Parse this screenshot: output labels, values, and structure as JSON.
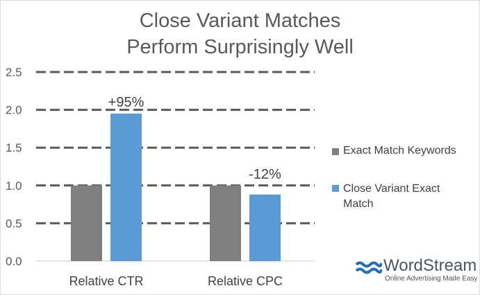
{
  "chart_data": {
    "type": "bar",
    "title": [
      "Close Variant Matches",
      "Perform Surprisingly Well"
    ],
    "categories": [
      "Relative CTR",
      "Relative CPC"
    ],
    "series": [
      {
        "name": "Exact Match Keywords",
        "values": [
          1.0,
          1.0
        ],
        "color": "#7f7f7f"
      },
      {
        "name": "Close Variant Exact Match",
        "name_lines": [
          "Close Variant Exact",
          "Match"
        ],
        "values": [
          1.95,
          0.88
        ],
        "color": "#5b9bd5"
      }
    ],
    "data_labels": [
      "+95%",
      "-12%"
    ],
    "ylim": [
      0,
      2.5
    ],
    "yticks": [
      "0.0",
      "0.5",
      "1.0",
      "1.5",
      "2.0",
      "2.5"
    ],
    "grid": "dashed horizontal",
    "legend_position": "right"
  },
  "logo": {
    "name": "WordStream",
    "tagline": "Online Advertising Made Easy",
    "color": "#1f6fb2"
  }
}
